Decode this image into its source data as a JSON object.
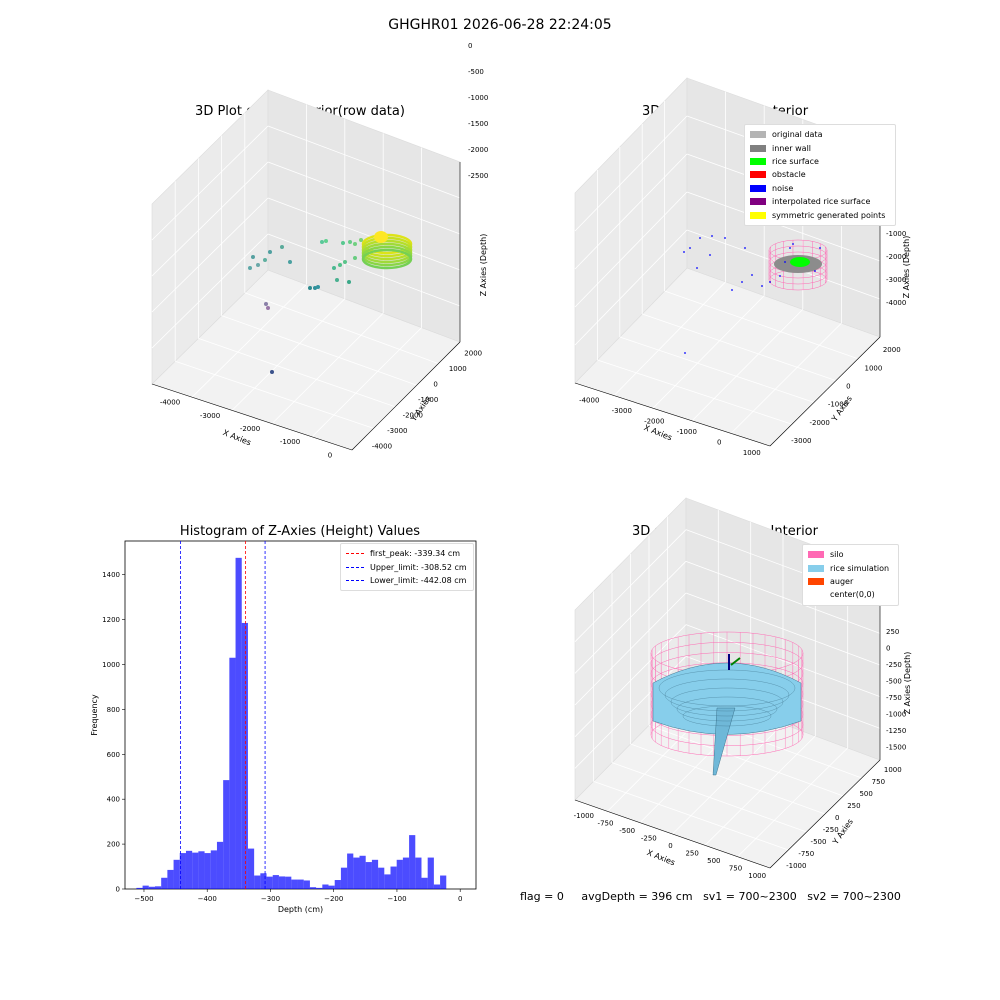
{
  "suptitle": "GHGHR01 2026-06-28 22:24:05",
  "status": {
    "flag": "flag = 0",
    "avg_depth": "avgDepth = 396 cm",
    "sv1": "sv1 = 700~2300",
    "sv2": "sv2 = 700~2300"
  },
  "chart_data": [
    {
      "type": "scatter",
      "title": "3D Plot of Silo Interior(row data)",
      "xlabel": "X Axies",
      "ylabel": "Y Axies",
      "zlabel": "Z Axies (Depth)",
      "x_ticks": [
        "-4000",
        "-3000",
        "-2000",
        "-1000",
        "0"
      ],
      "y_ticks": [
        "-4000",
        "-3000",
        "-2000",
        "-1000",
        "0",
        "1000",
        "2000"
      ],
      "z_ticks": [
        "0",
        "-500",
        "-1000",
        "-1500",
        "-2000",
        "-2500"
      ],
      "colormap": "viridis"
    },
    {
      "type": "scatter",
      "title": "3D classify of Silo Interior",
      "xlabel": "X Axies",
      "ylabel": "Y Axies",
      "zlabel": "Z Axies (Depth)",
      "x_ticks": [
        "-4000",
        "-3000",
        "-2000",
        "-1000",
        "0",
        "1000"
      ],
      "y_ticks": [
        "-3000",
        "-2000",
        "-1000",
        "0",
        "1000",
        "2000"
      ],
      "z_ticks": [
        "0",
        "-1000",
        "-2000",
        "-3000",
        "-4000"
      ],
      "legend": [
        {
          "label": "original data",
          "color": "#b4b4b4"
        },
        {
          "label": "inner wall",
          "color": "#808080"
        },
        {
          "label": "rice surface",
          "color": "#00ff00"
        },
        {
          "label": "obstacle",
          "color": "#ff0000"
        },
        {
          "label": "noise",
          "color": "#0000ff"
        },
        {
          "label": "interpolated rice surface",
          "color": "#800080"
        },
        {
          "label": "symmetric generated points",
          "color": "#ffff00"
        }
      ]
    },
    {
      "type": "bar",
      "title": "Histogram of Z-Axies (Height) Values",
      "xlabel": "Depth (cm)",
      "ylabel": "Frequency",
      "xlim": [
        -530,
        25
      ],
      "ylim": [
        0,
        1550
      ],
      "x_ticks": [
        -500,
        -400,
        -300,
        -200,
        -100,
        0
      ],
      "y_ticks": [
        0,
        200,
        400,
        600,
        800,
        1000,
        1200,
        1400
      ],
      "bin_start": -512,
      "bin_width": 9.8,
      "values": [
        5,
        15,
        10,
        12,
        50,
        85,
        130,
        160,
        170,
        162,
        168,
        160,
        172,
        210,
        485,
        1030,
        1475,
        1185,
        180,
        60,
        70,
        55,
        62,
        56,
        55,
        42,
        42,
        38,
        8,
        5,
        20,
        15,
        40,
        95,
        158,
        140,
        148,
        120,
        130,
        95,
        65,
        100,
        130,
        140,
        240,
        140,
        50,
        140,
        20,
        60
      ],
      "bar_color": "#0000ff",
      "vlines": [
        {
          "x": -339.34,
          "label": "first_peak: -339.34 cm",
          "color": "#ff0000"
        },
        {
          "x": -308.52,
          "label": "Upper_limit: -308.52 cm",
          "color": "#0000ff"
        },
        {
          "x": -442.08,
          "label": "Lower_limit: -442.08 cm",
          "color": "#0000ff"
        }
      ]
    },
    {
      "type": "surface",
      "title": "3D simulation of Silo Interior",
      "xlabel": "X Axies",
      "ylabel": "Y Axies",
      "zlabel": "Z Axies (Depth)",
      "x_ticks": [
        "-1000",
        "-750",
        "-500",
        "-250",
        "0",
        "250",
        "500",
        "750",
        "1000"
      ],
      "y_ticks": [
        "-1000",
        "-750",
        "-500",
        "-250",
        "0",
        "250",
        "500",
        "750",
        "1000"
      ],
      "z_ticks": [
        "250",
        "0",
        "-250",
        "-500",
        "-750",
        "-1000",
        "-1250",
        "-1500"
      ],
      "legend": [
        {
          "label": "silo",
          "color": "#ff69b4"
        },
        {
          "label": "rice simulation",
          "color": "#87ceeb"
        },
        {
          "label": "auger",
          "color": "#ff4500"
        },
        {
          "label": "center(0,0)",
          "color": ""
        }
      ]
    }
  ]
}
